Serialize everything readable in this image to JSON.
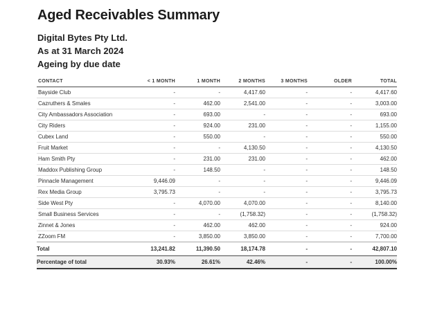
{
  "report": {
    "title": "Aged Receivables Summary",
    "company": "Digital Bytes Pty Ltd.",
    "as_at": "As at 31 March 2024",
    "basis": "Ageing by due date",
    "columns": [
      "CONTACT",
      "< 1 MONTH",
      "1 MONTH",
      "2 MONTHS",
      "3 MONTHS",
      "OLDER",
      "TOTAL"
    ],
    "rows": [
      [
        "Bayside Club",
        "-",
        "-",
        "4,417.60",
        "-",
        "-",
        "4,417.60"
      ],
      [
        "Cazruthers & Smales",
        "-",
        "462.00",
        "2,541.00",
        "-",
        "-",
        "3,003.00"
      ],
      [
        "City Ambassadors Association",
        "-",
        "693.00",
        "-",
        "-",
        "-",
        "693.00"
      ],
      [
        "City Riders",
        "-",
        "924.00",
        "231.00",
        "-",
        "-",
        "1,155.00"
      ],
      [
        "Cubex Land",
        "-",
        "550.00",
        "-",
        "-",
        "-",
        "550.00"
      ],
      [
        "Fruit Market",
        "-",
        "-",
        "4,130.50",
        "-",
        "-",
        "4,130.50"
      ],
      [
        "Ham Smith Pty",
        "-",
        "231.00",
        "231.00",
        "-",
        "-",
        "462.00"
      ],
      [
        "Maddox Publishing Group",
        "-",
        "148.50",
        "-",
        "-",
        "-",
        "148.50"
      ],
      [
        "Pinnacle Management",
        "9,446.09",
        "-",
        "-",
        "-",
        "-",
        "9,446.09"
      ],
      [
        "Rex Media Group",
        "3,795.73",
        "-",
        "-",
        "-",
        "-",
        "3,795.73"
      ],
      [
        "Side West Pty",
        "-",
        "4,070.00",
        "4,070.00",
        "-",
        "-",
        "8,140.00"
      ],
      [
        "Small Business Services",
        "-",
        "-",
        "(1,758.32)",
        "-",
        "-",
        "(1,758.32)"
      ],
      [
        "Zinnet & Jones",
        "-",
        "462.00",
        "462.00",
        "-",
        "-",
        "924.00"
      ],
      [
        "ZZoom FM",
        "-",
        "3,850.00",
        "3,850.00",
        "-",
        "-",
        "7,700.00"
      ]
    ],
    "total_row": [
      "Total",
      "13,241.82",
      "11,390.50",
      "18,174.78",
      "-",
      "-",
      "42,807.10"
    ],
    "percentage_row": [
      "Percentage of total",
      "30.93%",
      "26.61%",
      "42.46%",
      "-",
      "-",
      "100.00%"
    ]
  },
  "colors": {
    "page_background": "#ffffff",
    "title_text": "#1c1c1c",
    "body_text": "#2e2e2e",
    "header_rule": "#4a4a4a",
    "row_rule": "#dcdcdc",
    "percentage_row_background": "#f0f0f0"
  }
}
